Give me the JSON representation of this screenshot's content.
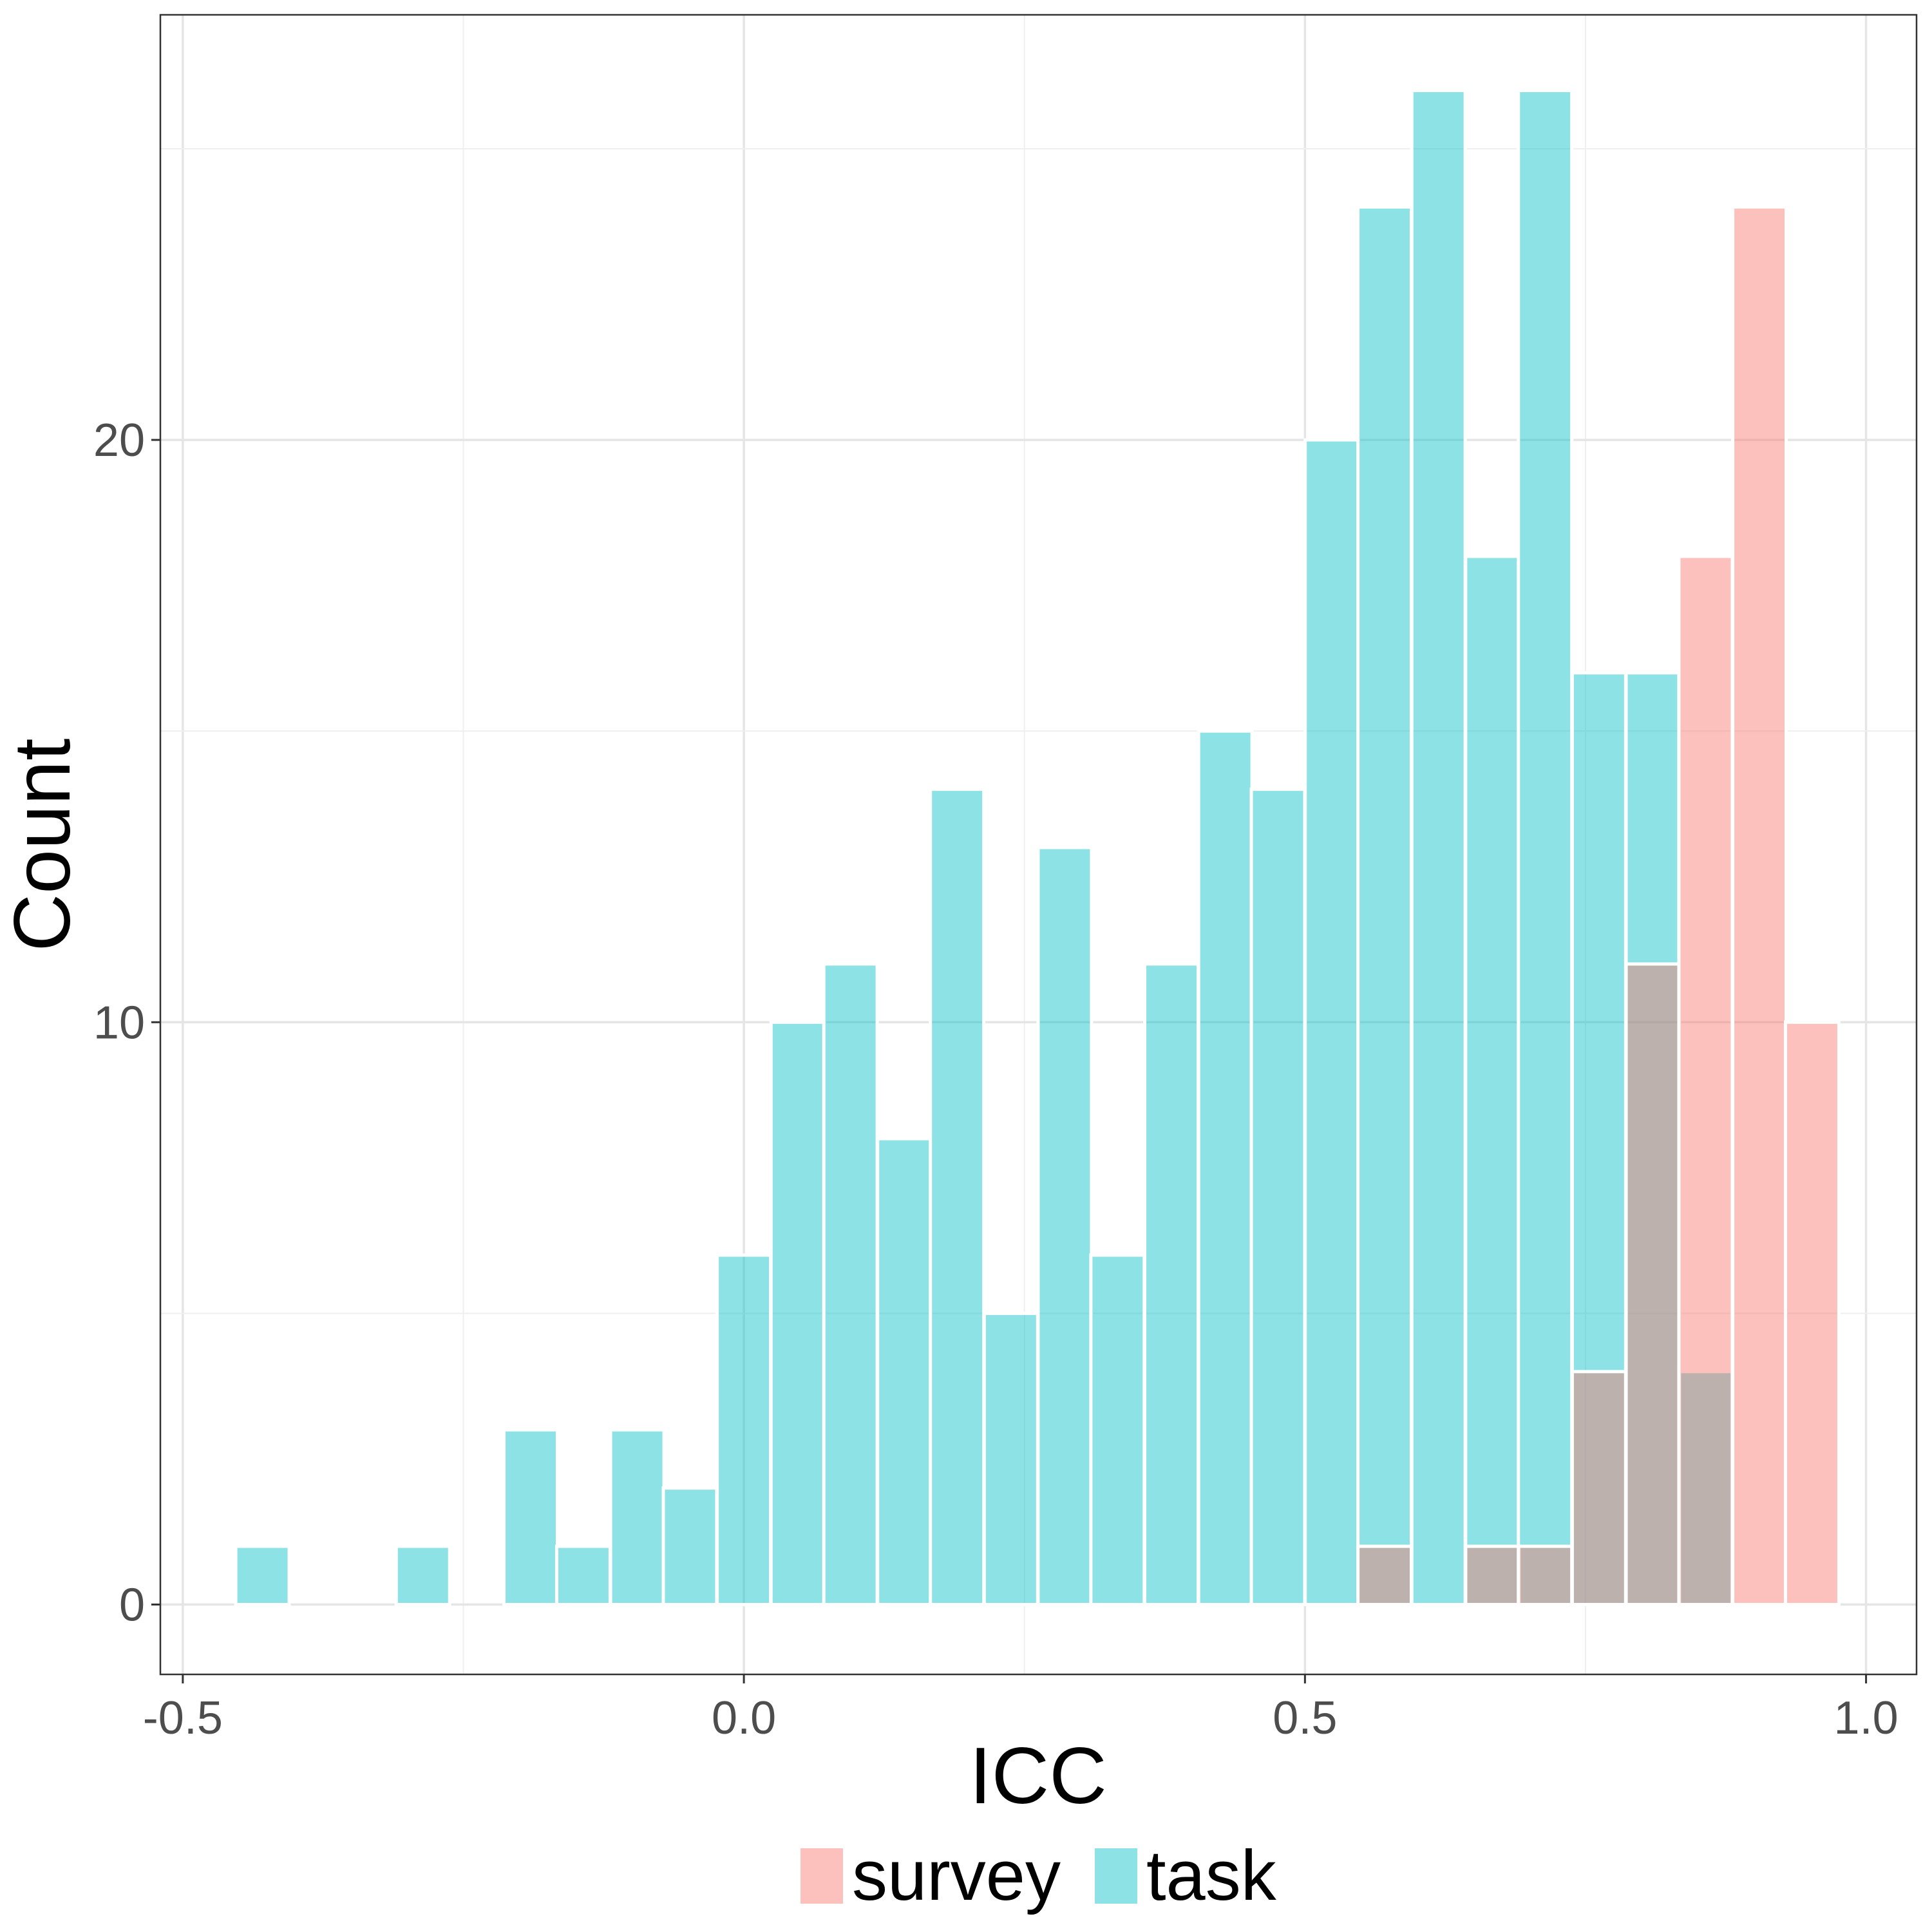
{
  "chart_data": {
    "type": "bar",
    "xlabel": "ICC",
    "ylabel": "Count",
    "xlim": [
      -0.52,
      1.045
    ],
    "ylim": [
      -1.2,
      27.3
    ],
    "x_ticks": [
      -0.5,
      0.0,
      0.5,
      1.0
    ],
    "x_tick_labels": [
      "-0.5",
      "0.0",
      "0.5",
      "1.0"
    ],
    "y_ticks": [
      0,
      10,
      20
    ],
    "y_tick_labels": [
      "0",
      "10",
      "20"
    ],
    "grid": true,
    "legend_position": "bottom",
    "bin_width": 0.0476,
    "bin_centers": [
      -0.429,
      -0.286,
      -0.19,
      -0.143,
      -0.095,
      -0.048,
      0.0,
      0.048,
      0.095,
      0.143,
      0.19,
      0.238,
      0.286,
      0.333,
      0.381,
      0.429,
      0.476,
      0.524,
      0.571,
      0.619,
      0.667,
      0.714,
      0.762,
      0.81,
      0.857,
      0.905,
      0.952
    ],
    "series": [
      {
        "name": "task",
        "color": "#00BFC4",
        "values": [
          1,
          1,
          3,
          1,
          3,
          2,
          6,
          10,
          11,
          8,
          14,
          5,
          13,
          6,
          11,
          15,
          14,
          20,
          24,
          26,
          18,
          26,
          16,
          16,
          4,
          0,
          0
        ]
      },
      {
        "name": "survey",
        "color": "#F8766D",
        "values": [
          0,
          0,
          0,
          0,
          0,
          0,
          0,
          0,
          0,
          0,
          0,
          0,
          0,
          0,
          0,
          0,
          0,
          0,
          1,
          0,
          1,
          1,
          4,
          11,
          18,
          24,
          10
        ]
      }
    ]
  }
}
